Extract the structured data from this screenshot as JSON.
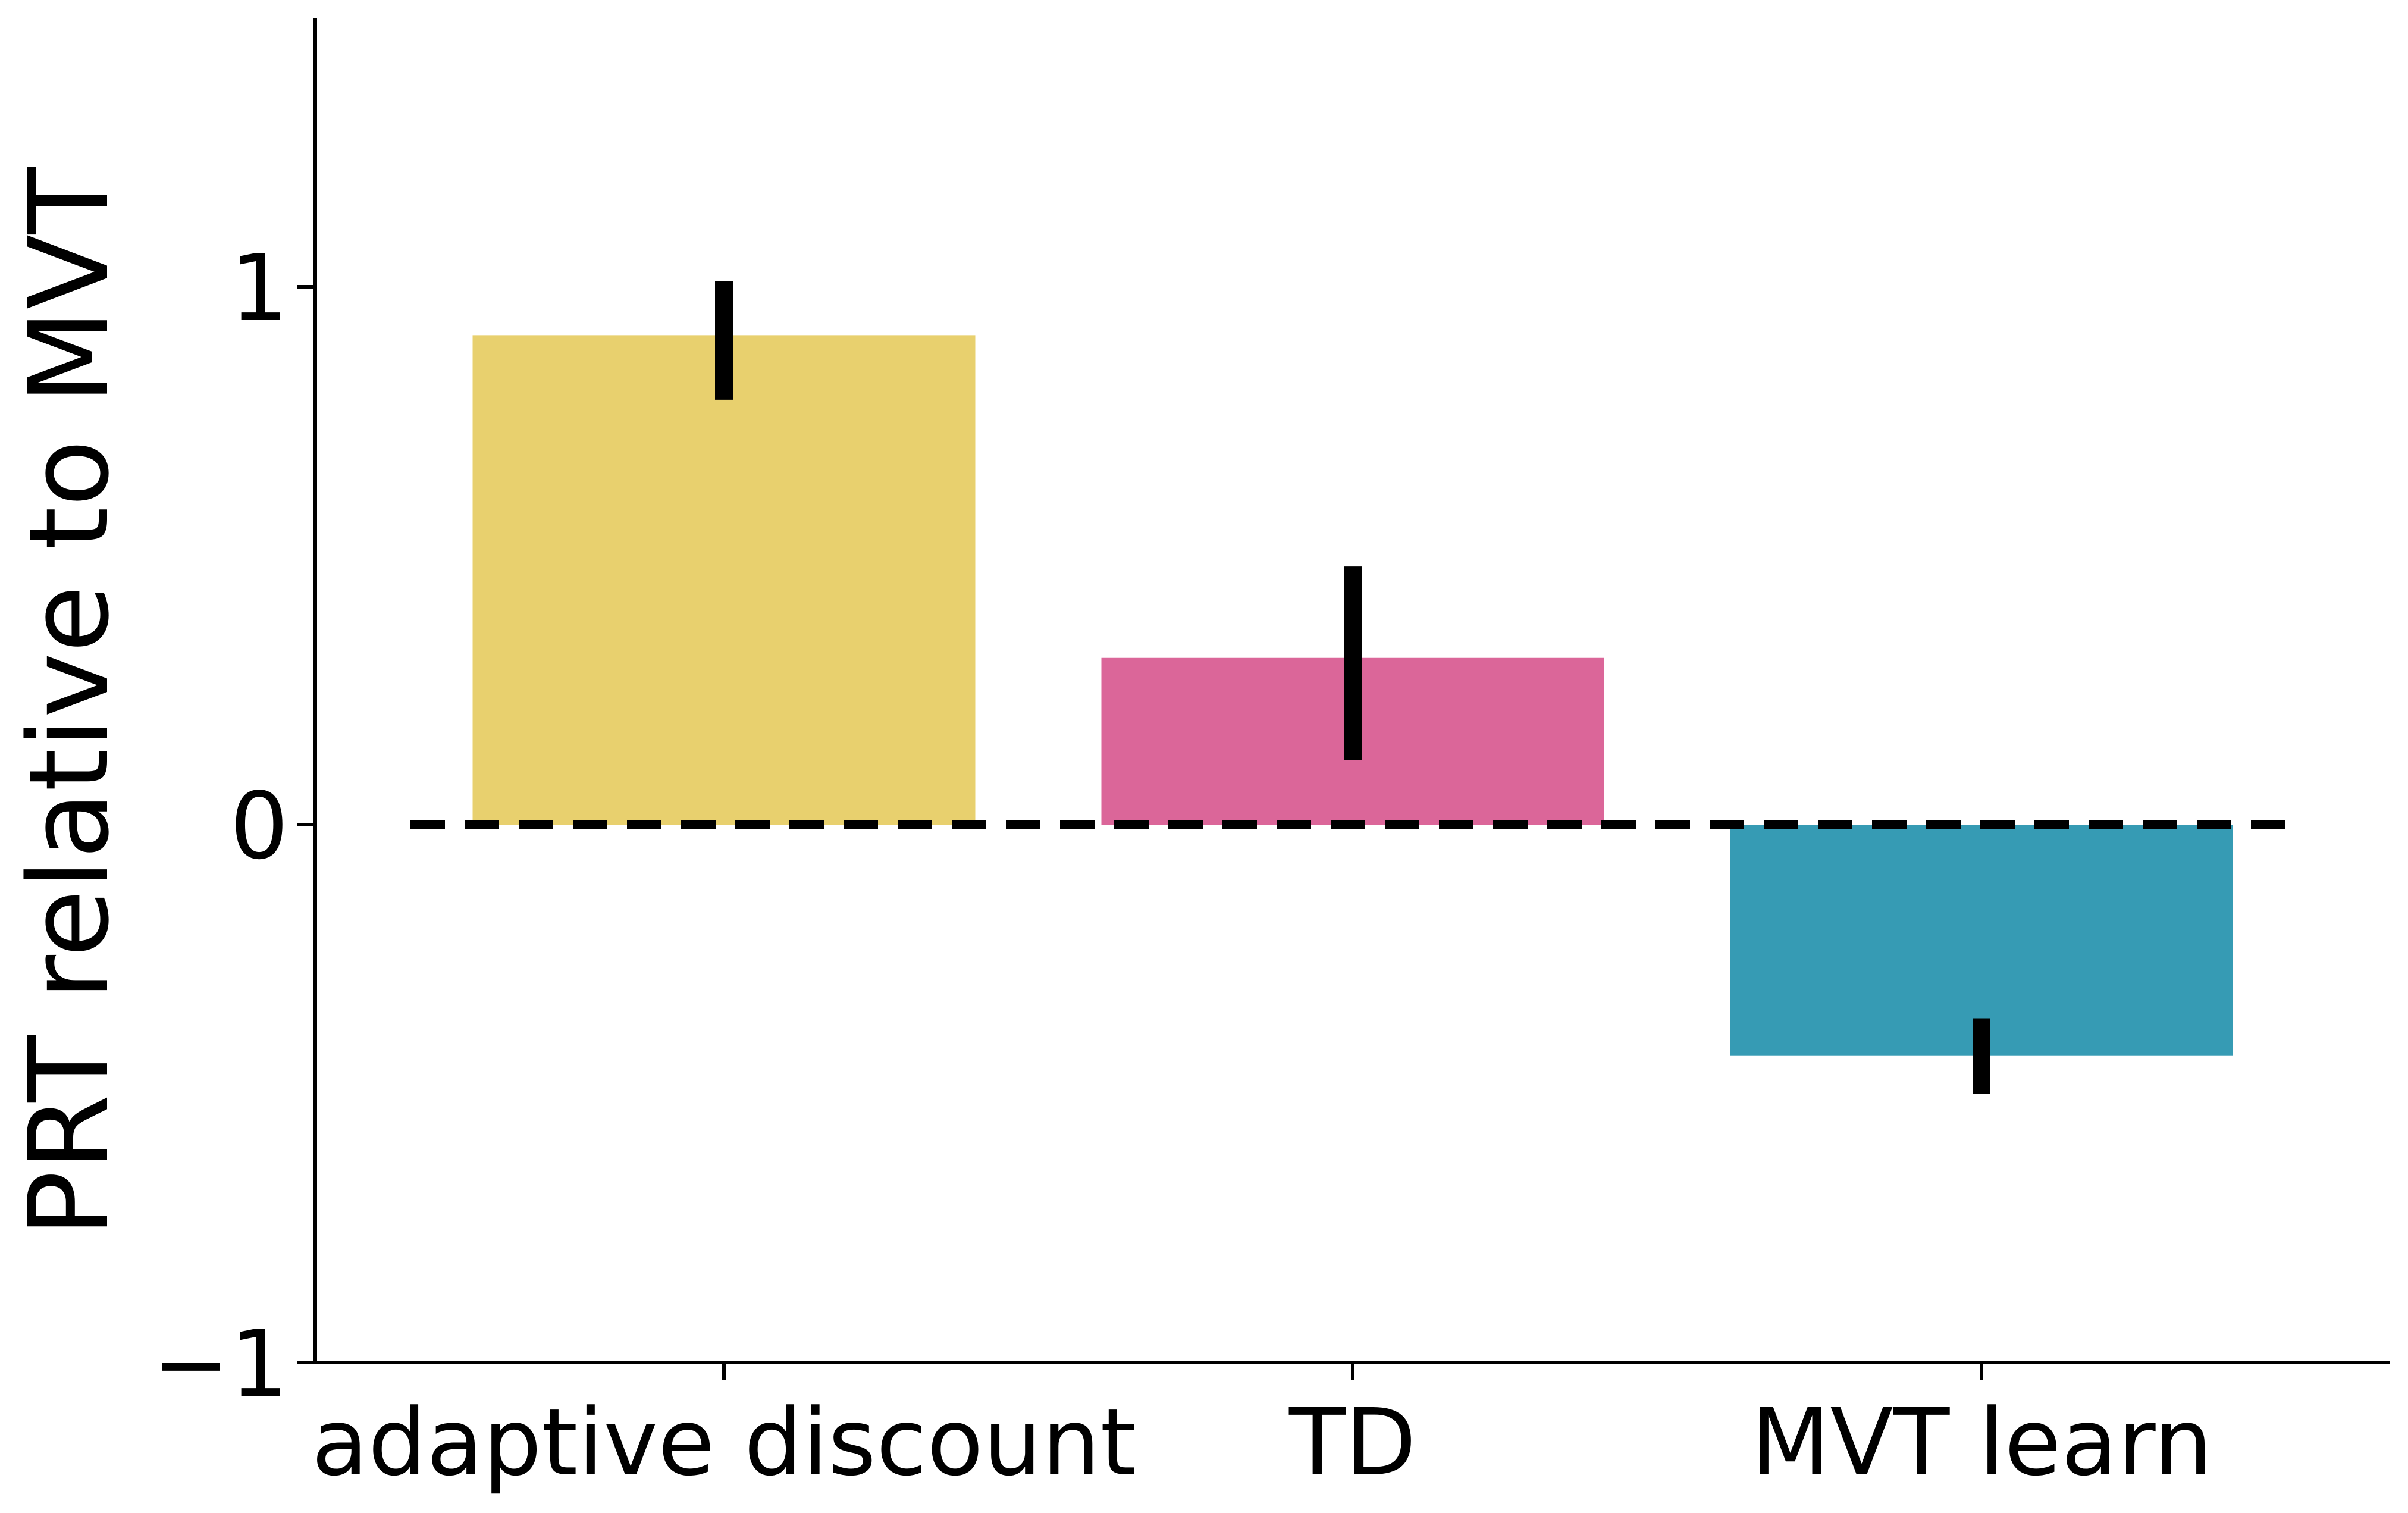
{
  "chart_data": {
    "type": "bar",
    "title": "",
    "xlabel": "",
    "ylabel": "PRT relative to MVT",
    "categories": [
      "adaptive discount",
      "TD",
      "MVT learn"
    ],
    "values": [
      0.91,
      0.31,
      -0.43
    ],
    "error_low": [
      0.79,
      0.12,
      -0.5
    ],
    "error_high": [
      1.01,
      0.48,
      -0.36
    ],
    "colors": [
      "#E8D06E",
      "#DB6699",
      "#369BB4"
    ],
    "ylim": [
      -1,
      1.5
    ],
    "yticks": [
      -1,
      0,
      1
    ],
    "ytick_labels": [
      "−1",
      "0",
      "1"
    ],
    "reference_line": {
      "y": 0,
      "style": "dashed"
    },
    "grid": false,
    "legend": "none"
  }
}
